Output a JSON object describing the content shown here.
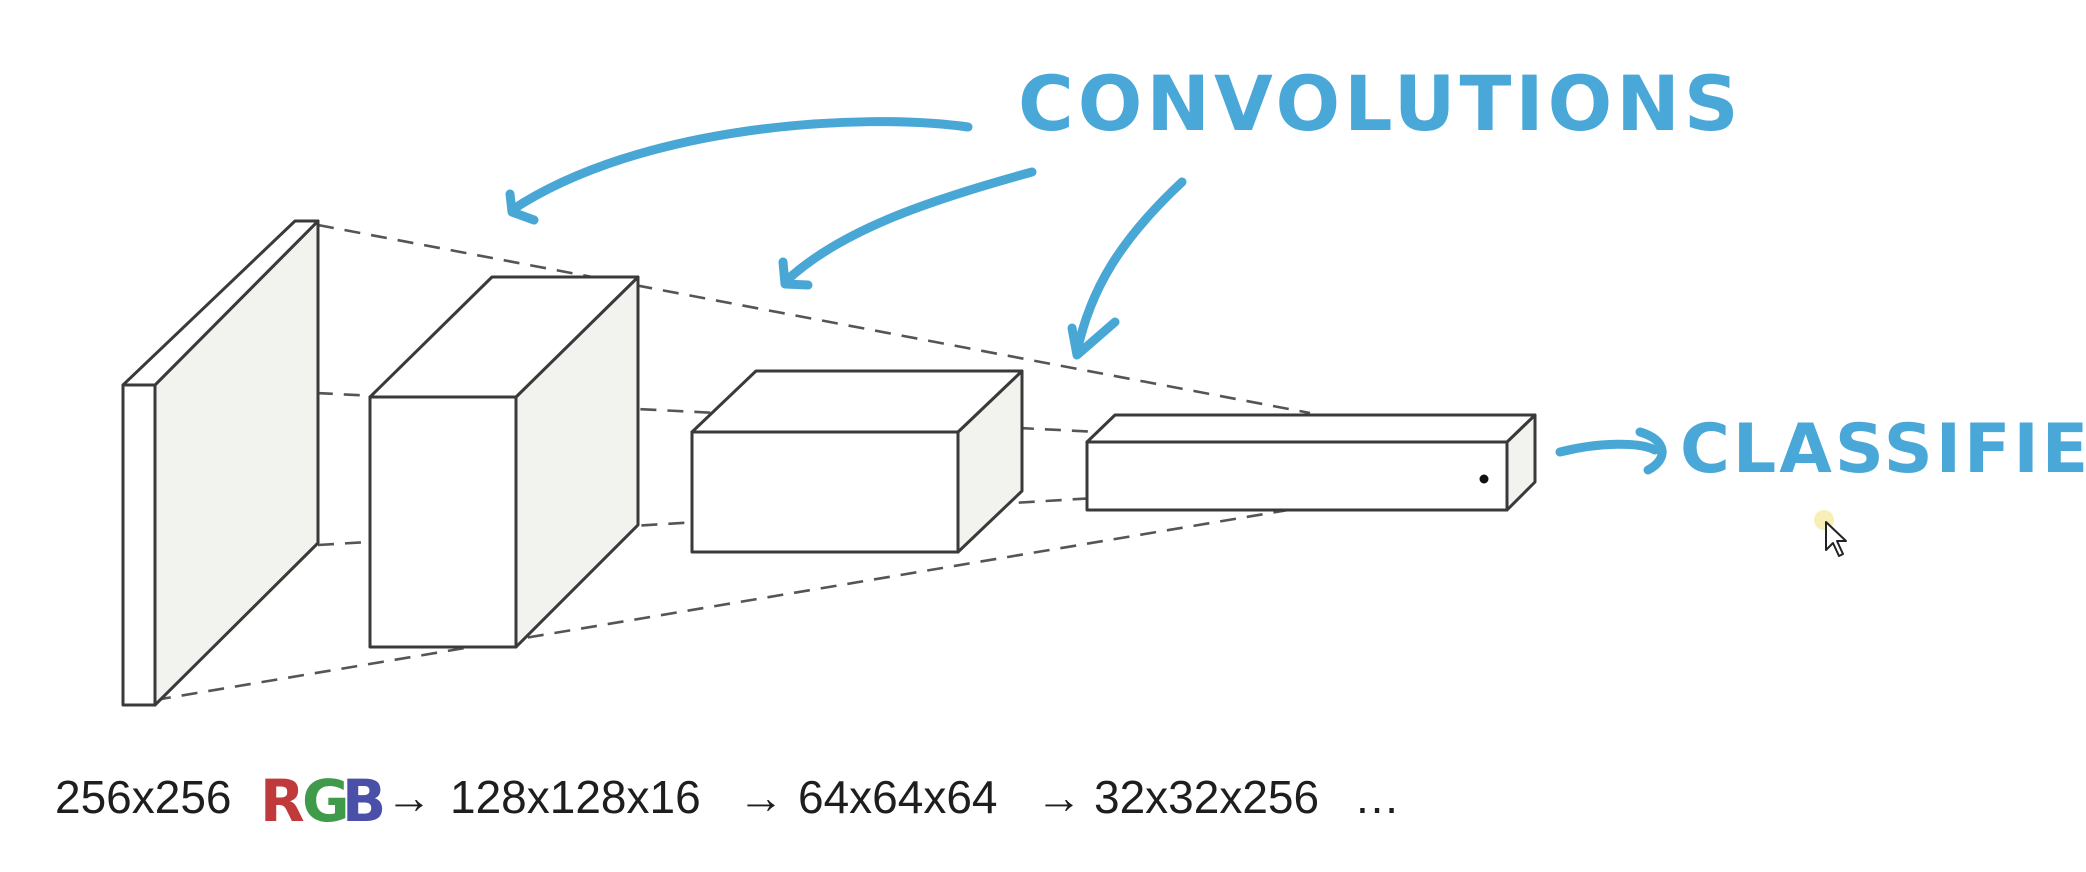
{
  "annotations": {
    "convolutions": "CONVOLUTIONS",
    "classifier": "CLASSIFIER"
  },
  "shapes": {
    "input": "256x256",
    "rgb": [
      "R",
      "G",
      "B"
    ],
    "arrow": "→",
    "layer1": "128x128x16",
    "layer2": "64x64x64",
    "layer3": "32x32x256",
    "ellipsis": "…"
  },
  "colors": {
    "annotation": "#49a7d6",
    "rgb_r": "#c0393b",
    "rgb_g": "#3f9a4a",
    "rgb_b": "#4a4fa8",
    "face_shade": "#f3f3ef"
  }
}
